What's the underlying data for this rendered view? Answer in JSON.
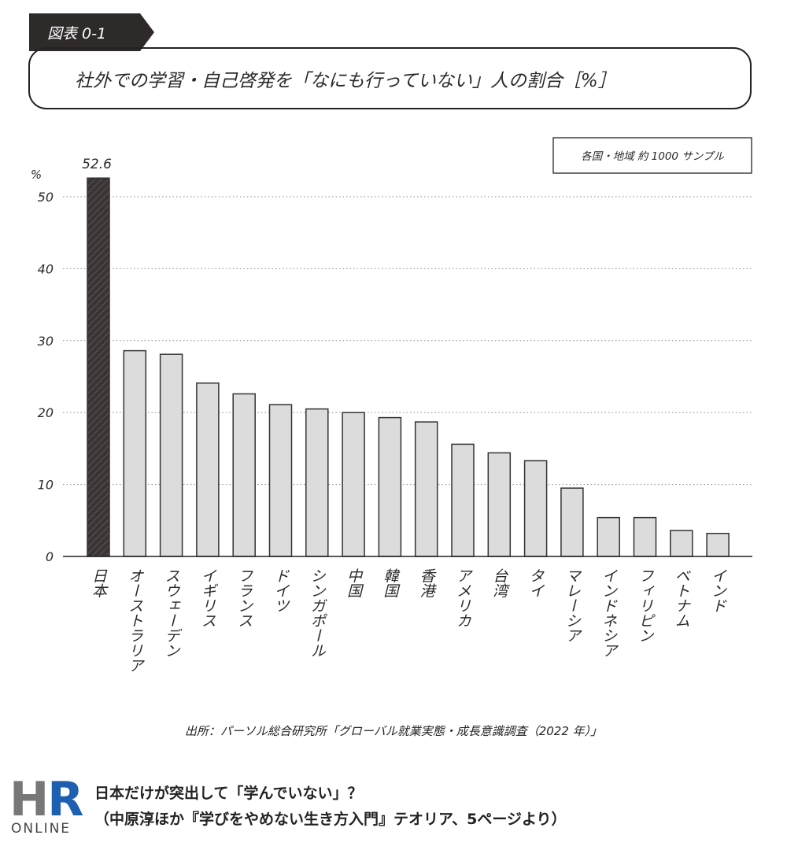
{
  "figure_tag": "図表 0-1",
  "chart_data": {
    "type": "bar",
    "title": "社外での学習・自己啓発を「なにも行っていない」人の割合［%］",
    "note": "各国・地域 約 1000 サンプル",
    "ylabel": "%",
    "ylim": [
      0,
      55
    ],
    "yticks": [
      0,
      10,
      20,
      30,
      40,
      50
    ],
    "grid": true,
    "categories": [
      "日本",
      "オーストラリア",
      "スウェーデン",
      "イギリス",
      "フランス",
      "ドイツ",
      "シンガポール",
      "中国",
      "韓国",
      "香港",
      "アメリカ",
      "台湾",
      "タイ",
      "マレーシア",
      "インドネシア",
      "フィリピン",
      "ベトナム",
      "インド"
    ],
    "values": [
      52.6,
      28.6,
      28.1,
      24.1,
      22.6,
      21.1,
      20.5,
      20.0,
      19.3,
      18.7,
      15.6,
      14.4,
      13.3,
      9.5,
      5.4,
      5.4,
      3.6,
      3.2
    ],
    "data_labels": {
      "0": "52.6"
    },
    "highlight_index": 0,
    "colors": {
      "highlight": "#3a3434",
      "bar": "#dcdcdc",
      "stroke": "#333333",
      "grid": "#8a8a8a"
    }
  },
  "source": "出所：パーソル総合研究所「グローバル就業実態・成長意識調査（2022 年）」",
  "logo": {
    "hr": "HR",
    "online": "ONLINE",
    "colors": {
      "h": "#777777",
      "r": "#1d5fb0"
    }
  },
  "caption": {
    "line1": "日本だけが突出して「学んでいない」？",
    "line2": "（中原淳ほか『学びをやめない生き方入門』テオリア、5ページより）"
  }
}
